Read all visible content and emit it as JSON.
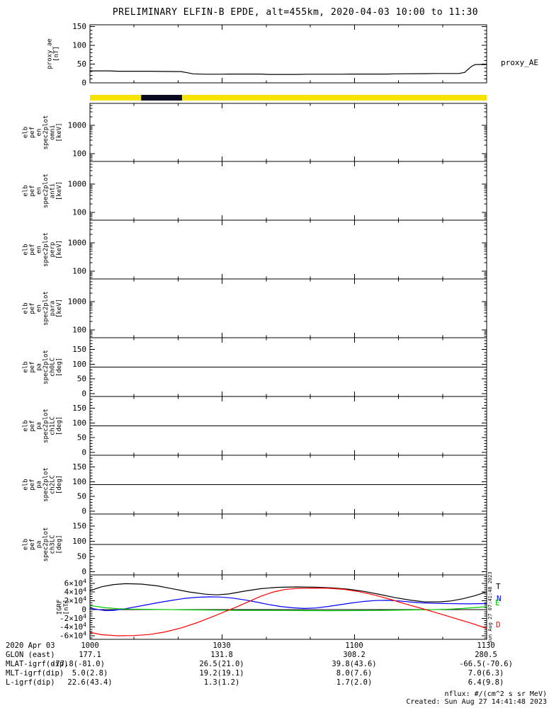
{
  "title": "PRELIMINARY ELFIN-B EPDE, alt=455km, 2020-04-03 10:00 to 11:30",
  "time_axis": {
    "major_tick_labels": [
      "1000",
      "1030",
      "1100",
      "1130"
    ],
    "minor_ticks_per_interval": 3,
    "date_label": "2020 Apr 03"
  },
  "chart_data": [
    {
      "id": "proxy",
      "type": "line",
      "title_right": "proxy_AE",
      "ylabel_lines": [
        "proxy_ae",
        "[nT]"
      ],
      "ylim": [
        0,
        155
      ],
      "yticks": [
        0,
        50,
        100,
        150
      ],
      "ytick_labels": [
        "0",
        "50",
        "100",
        "150"
      ],
      "minor_step": 10,
      "series": [
        {
          "name": "proxy_AE",
          "color": "#000000",
          "points": [
            [
              0,
              32
            ],
            [
              0.05,
              32
            ],
            [
              0.07,
              31
            ],
            [
              0.15,
              31
            ],
            [
              0.18,
              30.5
            ],
            [
              0.23,
              30
            ],
            [
              0.245,
              27
            ],
            [
              0.26,
              24
            ],
            [
              0.29,
              23
            ],
            [
              0.33,
              23
            ],
            [
              0.35,
              23.5
            ],
            [
              0.43,
              23.5
            ],
            [
              0.45,
              22.5
            ],
            [
              0.52,
              22.5
            ],
            [
              0.55,
              23
            ],
            [
              0.63,
              23
            ],
            [
              0.66,
              23.5
            ],
            [
              0.75,
              23.5
            ],
            [
              0.77,
              24
            ],
            [
              0.85,
              24.5
            ],
            [
              0.87,
              25
            ],
            [
              0.93,
              25
            ],
            [
              0.945,
              28
            ],
            [
              0.952,
              35
            ],
            [
              0.962,
              44
            ],
            [
              0.97,
              48.5
            ],
            [
              0.98,
              49
            ],
            [
              1,
              49
            ]
          ]
        }
      ]
    },
    {
      "id": "bar",
      "type": "status-bar",
      "bar_color": "#F6E400",
      "segment": {
        "color": "#0a0a20",
        "from": 0.129,
        "to": 0.232
      }
    },
    {
      "id": "en_omni",
      "type": "spectrogram",
      "ylabel_lines": [
        "elb",
        "pef",
        "en",
        "spec2plot",
        "omni",
        "[keV]"
      ],
      "yscale": "log",
      "ylim": [
        53,
        6000
      ],
      "yticks": [
        100,
        1000
      ],
      "ytick_labels": [
        "100",
        "1000"
      ],
      "data": []
    },
    {
      "id": "en_anti",
      "type": "spectrogram",
      "ylabel_lines": [
        "elb",
        "pef",
        "en",
        "spec2plot",
        "anti",
        "[keV]"
      ],
      "yscale": "log",
      "ylim": [
        53,
        6000
      ],
      "yticks": [
        100,
        1000
      ],
      "ytick_labels": [
        "100",
        "1000"
      ],
      "data": []
    },
    {
      "id": "en_perp",
      "type": "spectrogram",
      "ylabel_lines": [
        "elb",
        "pef",
        "en",
        "spec2plot",
        "perp",
        "[keV]"
      ],
      "yscale": "log",
      "ylim": [
        53,
        6000
      ],
      "yticks": [
        100,
        1000
      ],
      "ytick_labels": [
        "100",
        "1000"
      ],
      "data": []
    },
    {
      "id": "en_para",
      "type": "spectrogram",
      "ylabel_lines": [
        "elb",
        "pef",
        "en",
        "spec2plot",
        "para",
        "[keV]"
      ],
      "yscale": "log",
      "ylim": [
        53,
        6000
      ],
      "yticks": [
        100,
        1000
      ],
      "ytick_labels": [
        "100",
        "1000"
      ],
      "data": []
    },
    {
      "id": "pa_ch0",
      "type": "spectrogram",
      "ylabel_lines": [
        "elb",
        "pef",
        "pa",
        "spec2plot",
        "ch0LC",
        "[deg]"
      ],
      "ylim": [
        -10,
        190
      ],
      "yticks": [
        0,
        50,
        100,
        150
      ],
      "ytick_labels": [
        "0",
        "50",
        "100",
        "150"
      ],
      "minor_step": 10,
      "hline": 90,
      "data": []
    },
    {
      "id": "pa_ch1",
      "type": "spectrogram",
      "ylabel_lines": [
        "elb",
        "pef",
        "pa",
        "spec2plot",
        "ch1LC",
        "[deg]"
      ],
      "ylim": [
        -10,
        190
      ],
      "yticks": [
        0,
        50,
        100,
        150
      ],
      "ytick_labels": [
        "0",
        "50",
        "100",
        "150"
      ],
      "minor_step": 10,
      "hline": 90,
      "data": []
    },
    {
      "id": "pa_ch2",
      "type": "spectrogram",
      "ylabel_lines": [
        "elb",
        "pef",
        "pa",
        "spec2plot",
        "ch2LC",
        "[deg]"
      ],
      "ylim": [
        -10,
        190
      ],
      "yticks": [
        0,
        50,
        100,
        150
      ],
      "ytick_labels": [
        "0",
        "50",
        "100",
        "150"
      ],
      "minor_step": 10,
      "hline": 90,
      "data": []
    },
    {
      "id": "pa_ch3",
      "type": "spectrogram",
      "ylabel_lines": [
        "elb",
        "pef",
        "pa",
        "spec2plot",
        "ch3LC",
        "[deg]"
      ],
      "ylim": [
        -10,
        190
      ],
      "yticks": [
        0,
        50,
        100,
        150
      ],
      "ytick_labels": [
        "0",
        "50",
        "100",
        "150"
      ],
      "minor_step": 10,
      "hline": 90,
      "data": []
    },
    {
      "id": "igrf",
      "type": "line",
      "ylabel_lines": [
        "IGRF",
        "[nT]"
      ],
      "ylim": [
        -68000,
        79000
      ],
      "yticks": [
        -60000,
        -40000,
        -20000,
        0,
        20000,
        40000,
        60000
      ],
      "ytick_labels": [
        "-6×10^4",
        "-4×10^4",
        "-2×10^4",
        "0",
        "2×10^4",
        "4×10^4",
        "6×10^4"
      ],
      "minor_step": 5000,
      "zero_line": true,
      "series": [
        {
          "name": "T",
          "color": "#000000",
          "points": [
            [
              0,
              43000
            ],
            [
              0.03,
              52000
            ],
            [
              0.06,
              57000
            ],
            [
              0.09,
              59000
            ],
            [
              0.13,
              58000
            ],
            [
              0.17,
              54000
            ],
            [
              0.21,
              47000
            ],
            [
              0.25,
              40000
            ],
            [
              0.29,
              35000
            ],
            [
              0.32,
              33500
            ],
            [
              0.35,
              35500
            ],
            [
              0.39,
              42000
            ],
            [
              0.43,
              47500
            ],
            [
              0.47,
              50500
            ],
            [
              0.52,
              51500
            ],
            [
              0.57,
              51000
            ],
            [
              0.61,
              49500
            ],
            [
              0.65,
              46500
            ],
            [
              0.69,
              41500
            ],
            [
              0.73,
              34500
            ],
            [
              0.77,
              27000
            ],
            [
              0.81,
              21000
            ],
            [
              0.845,
              17500
            ],
            [
              0.88,
              17500
            ],
            [
              0.91,
              19500
            ],
            [
              0.94,
              24500
            ],
            [
              0.97,
              31500
            ],
            [
              1,
              40000
            ]
          ]
        },
        {
          "name": "N",
          "color": "#0000FF",
          "points": [
            [
              0,
              3000
            ],
            [
              0.02,
              0
            ],
            [
              0.04,
              -2500
            ],
            [
              0.06,
              -2000
            ],
            [
              0.09,
              2000
            ],
            [
              0.12,
              7000
            ],
            [
              0.15,
              12000
            ],
            [
              0.18,
              17000
            ],
            [
              0.21,
              21500
            ],
            [
              0.24,
              25500
            ],
            [
              0.27,
              28000
            ],
            [
              0.3,
              29000
            ],
            [
              0.33,
              28500
            ],
            [
              0.36,
              26000
            ],
            [
              0.39,
              22000
            ],
            [
              0.42,
              17000
            ],
            [
              0.45,
              11500
            ],
            [
              0.48,
              7000
            ],
            [
              0.51,
              4000
            ],
            [
              0.54,
              2500
            ],
            [
              0.57,
              3500
            ],
            [
              0.6,
              7000
            ],
            [
              0.63,
              11000
            ],
            [
              0.66,
              15000
            ],
            [
              0.69,
              18500
            ],
            [
              0.72,
              20500
            ],
            [
              0.75,
              21000
            ],
            [
              0.78,
              19500
            ],
            [
              0.81,
              17000
            ],
            [
              0.84,
              15000
            ],
            [
              0.87,
              14000
            ],
            [
              0.9,
              13500
            ],
            [
              0.95,
              13000
            ],
            [
              1,
              13500
            ]
          ]
        },
        {
          "name": "E",
          "color": "#00CC00",
          "points": [
            [
              0,
              9000
            ],
            [
              0.02,
              6500
            ],
            [
              0.04,
              4000
            ],
            [
              0.07,
              2000
            ],
            [
              0.1,
              1000
            ],
            [
              0.14,
              500
            ],
            [
              0.18,
              0
            ],
            [
              0.22,
              -500
            ],
            [
              0.27,
              -1000
            ],
            [
              0.32,
              -1500
            ],
            [
              0.38,
              -2000
            ],
            [
              0.45,
              -2000
            ],
            [
              0.5,
              -2200
            ],
            [
              0.55,
              -2500
            ],
            [
              0.6,
              -2800
            ],
            [
              0.65,
              -2500
            ],
            [
              0.7,
              -2200
            ],
            [
              0.75,
              -1800
            ],
            [
              0.8,
              -1200
            ],
            [
              0.85,
              -500
            ],
            [
              0.88,
              0
            ],
            [
              0.91,
              1000
            ],
            [
              0.94,
              2500
            ],
            [
              0.97,
              4500
            ],
            [
              1,
              6500
            ]
          ]
        },
        {
          "name": "D",
          "color": "#FF0000",
          "points": [
            [
              0,
              -52000
            ],
            [
              0.03,
              -57500
            ],
            [
              0.07,
              -60000
            ],
            [
              0.11,
              -59500
            ],
            [
              0.15,
              -57000
            ],
            [
              0.19,
              -51000
            ],
            [
              0.23,
              -42000
            ],
            [
              0.27,
              -30000
            ],
            [
              0.31,
              -16000
            ],
            [
              0.34,
              -5000
            ],
            [
              0.37,
              6000
            ],
            [
              0.4,
              18000
            ],
            [
              0.43,
              30000
            ],
            [
              0.46,
              39500
            ],
            [
              0.49,
              45500
            ],
            [
              0.52,
              48000
            ],
            [
              0.56,
              49000
            ],
            [
              0.6,
              48500
            ],
            [
              0.64,
              46000
            ],
            [
              0.68,
              40500
            ],
            [
              0.72,
              32500
            ],
            [
              0.76,
              22500
            ],
            [
              0.8,
              11500
            ],
            [
              0.84,
              1500
            ],
            [
              0.87,
              -6500
            ],
            [
              0.9,
              -14500
            ],
            [
              0.93,
              -23000
            ],
            [
              0.96,
              -31000
            ],
            [
              1,
              -43000
            ]
          ]
        }
      ]
    }
  ],
  "footer": {
    "rows": [
      {
        "label": "GLON (east)",
        "values": [
          "177.1",
          "131.8",
          "308.2",
          "280.5"
        ]
      },
      {
        "label": "MLAT-igrf(dip)",
        "values": [
          "-77.8(-81.0)",
          "26.5(21.0)",
          "39.8(43.6)",
          "-66.5(-70.6)"
        ]
      },
      {
        "label": "MLT-igrf(dip)",
        "values": [
          "5.0(2.8)",
          "19.2(19.1)",
          "8.0(7.6)",
          "7.0(6.3)"
        ]
      },
      {
        "label": "L-igrf(dip)",
        "values": [
          "22.6(43.4)",
          "1.3(1.2)",
          "1.7(2.0)",
          "6.4(9.8)"
        ]
      }
    ],
    "nflux_note": "nflux: #/(cm^2 s sr MeV)",
    "created": "Created: Sun Aug 27 14:41:48 2023",
    "side_timestamp": "Sun Aug 27 07:41:48 2023"
  }
}
